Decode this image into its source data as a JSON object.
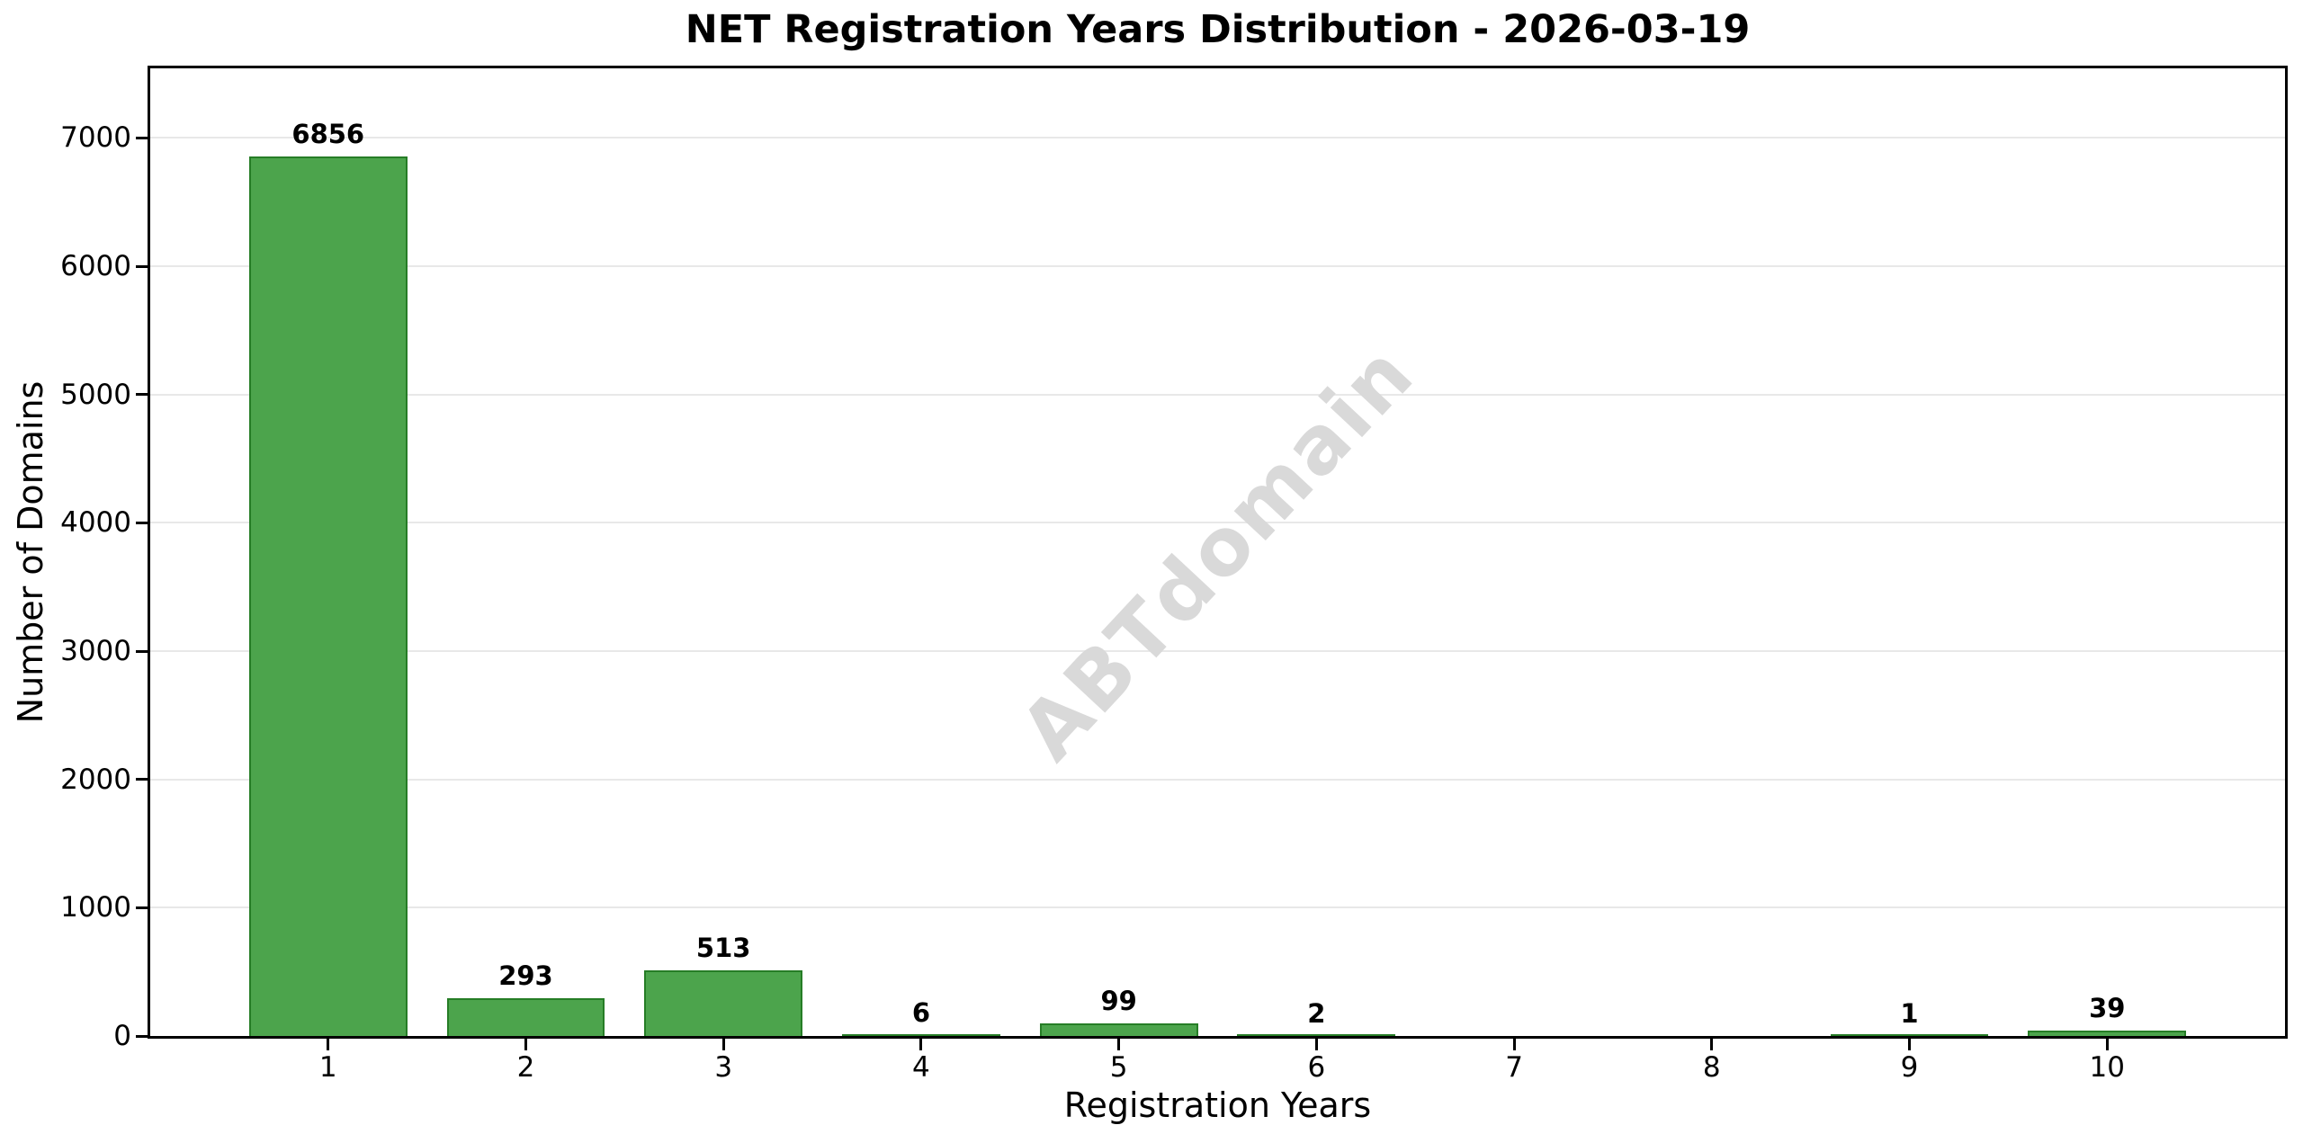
{
  "figure": {
    "title": "NET Registration Years Distribution - 2026-03-19",
    "xlabel": "Registration Years",
    "ylabel": "Number of Domains",
    "watermark": "ABTdomain"
  },
  "chart_data": {
    "type": "bar",
    "title": "NET Registration Years Distribution - 2026-03-19",
    "xlabel": "Registration Years",
    "ylabel": "Number of Domains",
    "categories": [
      "1",
      "2",
      "3",
      "4",
      "5",
      "6",
      "7",
      "8",
      "9",
      "10"
    ],
    "values": [
      6856,
      293,
      513,
      6,
      99,
      2,
      0,
      0,
      1,
      39
    ],
    "bar_labels": [
      "6856",
      "293",
      "513",
      "6",
      "99",
      "2",
      "",
      "",
      "1",
      "39"
    ],
    "yticks": [
      0,
      1000,
      2000,
      3000,
      4000,
      5000,
      6000,
      7000
    ],
    "ylim": [
      0,
      7542
    ],
    "xlim": [
      0.1,
      10.9
    ],
    "bar_width_units": 0.8,
    "grid": "horizontal-light",
    "legend": "none",
    "watermark": "ABTdomain",
    "colors": {
      "bar_fill": "#4CA44C",
      "bar_edge": "#267D26",
      "grid": "#e8e8e8",
      "watermark": "#d9d9d9",
      "spine": "#000000",
      "text": "#000000",
      "background": "#ffffff"
    }
  }
}
